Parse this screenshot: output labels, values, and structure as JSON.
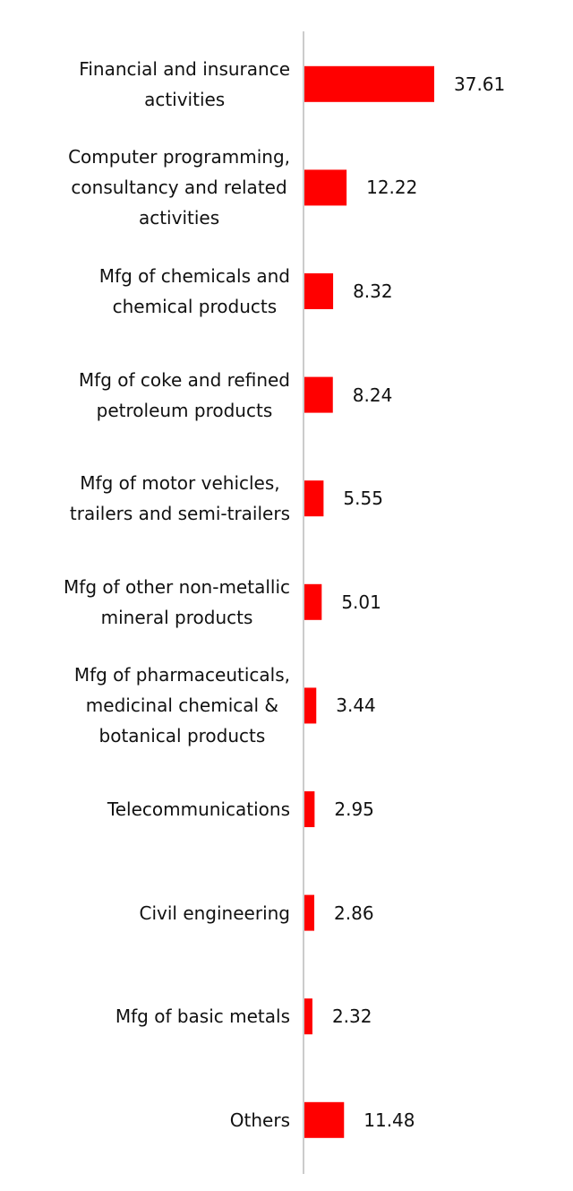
{
  "chart_data": {
    "type": "bar",
    "orientation": "horizontal",
    "categories": [
      "Financial and insurance\nactivities",
      "Computer programming,\nconsultancy and related\nactivities",
      "Mfg of chemicals and\nchemical products",
      "Mfg of coke and refined\npetroleum products",
      "Mfg of motor vehicles,\ntrailers and semi-trailers",
      "Mfg of other non-metallic\nmineral products",
      "Mfg of pharmaceuticals,\nmedicinal chemical &\nbotanical products",
      "Telecommunications",
      "Civil engineering",
      "Mfg of basic metals",
      "Others"
    ],
    "values": [
      37.61,
      12.22,
      8.32,
      8.24,
      5.55,
      5.01,
      3.44,
      2.95,
      2.86,
      2.32,
      11.48
    ],
    "color": "#ff0000"
  }
}
